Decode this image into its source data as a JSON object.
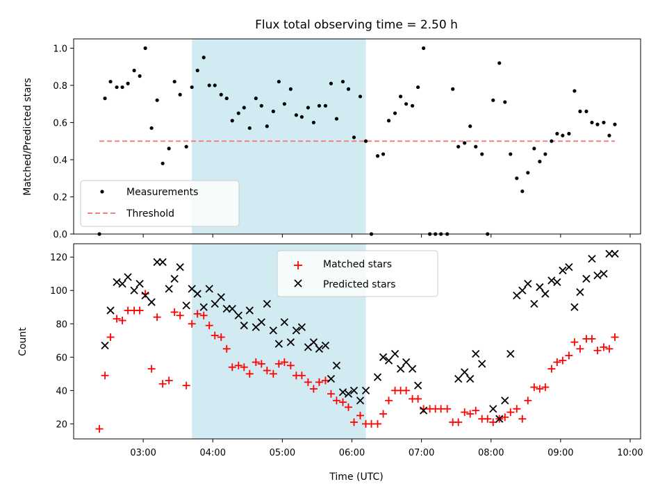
{
  "chart_data": [
    {
      "type": "scatter",
      "title": "Flux total observing time = 2.50 h",
      "ylabel": "Matched/Predicted stars",
      "xlabel": "",
      "x_unit": "hours UTC",
      "xlim": [
        2.0,
        10.15
      ],
      "ylim": [
        0.0,
        1.05
      ],
      "y_ticks": [
        0.0,
        0.2,
        0.4,
        0.6,
        0.8,
        1.0
      ],
      "y_tick_labels": [
        "0.0",
        "0.2",
        "0.4",
        "0.6",
        "0.8",
        "1.0"
      ],
      "shaded_region": {
        "x_start": 3.7,
        "x_end": 6.2,
        "color": "#add8e6"
      },
      "threshold": {
        "value": 0.5,
        "x_start": 2.37,
        "x_end": 9.78,
        "color": "#f08080"
      },
      "legend": {
        "placement": "lower-left",
        "entries": [
          {
            "label": "Measurements",
            "marker": "dot",
            "color": "#000000"
          },
          {
            "label": "Threshold",
            "marker": "dashed-line",
            "color": "#f08080"
          }
        ]
      },
      "series": [
        {
          "name": "Measurements",
          "color": "#000000",
          "x": [
            2.37,
            2.45,
            2.53,
            2.62,
            2.7,
            2.78,
            2.87,
            2.95,
            3.03,
            3.12,
            3.2,
            3.28,
            3.37,
            3.45,
            3.53,
            3.62,
            3.7,
            3.78,
            3.87,
            3.95,
            4.03,
            4.12,
            4.2,
            4.28,
            4.37,
            4.45,
            4.53,
            4.62,
            4.7,
            4.78,
            4.87,
            4.95,
            5.03,
            5.12,
            5.2,
            5.28,
            5.37,
            5.45,
            5.53,
            5.62,
            5.7,
            5.78,
            5.87,
            5.95,
            6.03,
            6.12,
            6.2,
            6.28,
            6.37,
            6.45,
            6.53,
            6.62,
            6.7,
            6.78,
            6.87,
            6.95,
            7.03,
            7.12,
            7.2,
            7.28,
            7.37,
            7.45,
            7.53,
            7.62,
            7.7,
            7.78,
            7.87,
            7.95,
            8.03,
            8.12,
            8.2,
            8.28,
            8.37,
            8.45,
            8.53,
            8.62,
            8.7,
            8.78,
            8.87,
            8.95,
            9.03,
            9.12,
            9.2,
            9.28,
            9.37,
            9.45,
            9.53,
            9.62,
            9.7,
            9.78
          ],
          "y": [
            0.0,
            0.73,
            0.82,
            0.79,
            0.79,
            0.81,
            0.88,
            0.85,
            1.0,
            0.57,
            0.72,
            0.38,
            0.46,
            0.82,
            0.75,
            0.47,
            0.79,
            0.88,
            0.95,
            0.8,
            0.8,
            0.75,
            0.73,
            0.61,
            0.65,
            0.68,
            0.57,
            0.73,
            0.69,
            0.58,
            0.66,
            0.82,
            0.7,
            0.78,
            0.64,
            0.63,
            0.68,
            0.6,
            0.69,
            0.69,
            0.81,
            0.62,
            0.82,
            0.78,
            0.52,
            0.74,
            0.5,
            0.0,
            0.42,
            0.43,
            0.61,
            0.65,
            0.74,
            0.7,
            0.69,
            0.79,
            1.0,
            0.0,
            0.0,
            0.0,
            0.0,
            0.78,
            0.47,
            0.49,
            0.58,
            0.47,
            0.43,
            0.0,
            0.72,
            0.92,
            0.71,
            0.43,
            0.3,
            0.23,
            0.33,
            0.46,
            0.39,
            0.43,
            0.5,
            0.54,
            0.53,
            0.54,
            0.77,
            0.66,
            0.66,
            0.6,
            0.59,
            0.6,
            0.53,
            0.59
          ]
        }
      ]
    },
    {
      "type": "scatter",
      "title": "",
      "ylabel": "Count",
      "xlabel": "Time (UTC)",
      "x_unit": "hours UTC",
      "xlim": [
        2.0,
        10.15
      ],
      "ylim": [
        11,
        128
      ],
      "y_ticks": [
        20,
        40,
        60,
        80,
        100,
        120
      ],
      "y_tick_labels": [
        "20",
        "40",
        "60",
        "80",
        "100",
        "120"
      ],
      "x_ticks": [
        3,
        4,
        5,
        6,
        7,
        8,
        9,
        10
      ],
      "x_tick_labels": [
        "03:00",
        "04:00",
        "05:00",
        "06:00",
        "07:00",
        "08:00",
        "09:00",
        "10:00"
      ],
      "shaded_region": {
        "x_start": 3.7,
        "x_end": 6.2,
        "color": "#add8e6"
      },
      "legend": {
        "placement": "upper-center",
        "entries": [
          {
            "label": "Matched stars",
            "marker": "plus",
            "color": "#ff0000"
          },
          {
            "label": "Predicted stars",
            "marker": "x",
            "color": "#000000"
          }
        ]
      },
      "series": [
        {
          "name": "Matched stars",
          "color": "#ff0000",
          "marker": "plus",
          "x": [
            2.37,
            2.45,
            2.53,
            2.62,
            2.7,
            2.78,
            2.87,
            2.95,
            3.03,
            3.12,
            3.2,
            3.28,
            3.37,
            3.45,
            3.53,
            3.62,
            3.7,
            3.78,
            3.87,
            3.95,
            4.03,
            4.12,
            4.2,
            4.28,
            4.37,
            4.45,
            4.53,
            4.62,
            4.7,
            4.78,
            4.87,
            4.95,
            5.03,
            5.12,
            5.2,
            5.28,
            5.37,
            5.45,
            5.53,
            5.62,
            5.7,
            5.78,
            5.87,
            5.95,
            6.03,
            6.12,
            6.2,
            6.28,
            6.37,
            6.45,
            6.53,
            6.62,
            6.7,
            6.78,
            6.87,
            6.95,
            7.03,
            7.12,
            7.2,
            7.28,
            7.37,
            7.45,
            7.53,
            7.62,
            7.7,
            7.78,
            7.87,
            7.95,
            8.03,
            8.12,
            8.2,
            8.28,
            8.37,
            8.45,
            8.53,
            8.62,
            8.7,
            8.78,
            8.87,
            8.95,
            9.03,
            9.12,
            9.2,
            9.28,
            9.37,
            9.45,
            9.53,
            9.62,
            9.7,
            9.78
          ],
          "y": [
            17,
            49,
            72,
            83,
            82,
            88,
            88,
            88,
            98,
            53,
            84,
            44,
            46,
            87,
            85,
            43,
            80,
            86,
            85,
            79,
            73,
            72,
            65,
            54,
            55,
            54,
            50,
            57,
            56,
            52,
            50,
            56,
            57,
            55,
            49,
            49,
            45,
            41,
            45,
            46,
            38,
            34,
            33,
            30,
            21,
            25,
            20,
            20,
            20,
            26,
            34,
            40,
            40,
            40,
            35,
            35,
            29,
            29,
            29,
            29,
            29,
            21,
            21,
            27,
            26,
            28,
            23,
            23,
            21,
            23,
            24,
            27,
            29,
            23,
            34,
            42,
            41,
            42,
            53,
            57,
            58,
            61,
            69,
            65,
            71,
            71,
            64,
            66,
            65,
            72
          ]
        },
        {
          "name": "Predicted stars",
          "color": "#000000",
          "marker": "x",
          "x": [
            2.45,
            2.53,
            2.62,
            2.7,
            2.78,
            2.87,
            2.95,
            3.03,
            3.12,
            3.2,
            3.28,
            3.37,
            3.45,
            3.53,
            3.62,
            3.7,
            3.78,
            3.87,
            3.95,
            4.03,
            4.12,
            4.2,
            4.28,
            4.37,
            4.45,
            4.53,
            4.62,
            4.7,
            4.78,
            4.87,
            4.95,
            5.03,
            5.12,
            5.2,
            5.28,
            5.37,
            5.45,
            5.53,
            5.62,
            5.7,
            5.78,
            5.87,
            5.95,
            6.03,
            6.12,
            6.2,
            6.37,
            6.45,
            6.53,
            6.62,
            6.7,
            6.78,
            6.87,
            6.95,
            7.03,
            7.53,
            7.62,
            7.7,
            7.78,
            7.87,
            8.03,
            8.12,
            8.2,
            8.28,
            8.37,
            8.45,
            8.53,
            8.62,
            8.7,
            8.78,
            8.87,
            8.95,
            9.03,
            9.12,
            9.2,
            9.28,
            9.37,
            9.45,
            9.53,
            9.62,
            9.7,
            9.78
          ],
          "y": [
            67,
            88,
            105,
            104,
            108,
            100,
            104,
            97,
            93,
            117,
            117,
            101,
            107,
            114,
            91,
            101,
            98,
            90,
            101,
            92,
            96,
            89,
            89,
            85,
            79,
            88,
            78,
            81,
            92,
            76,
            68,
            81,
            69,
            76,
            78,
            66,
            69,
            65,
            67,
            47,
            55,
            39,
            38,
            40,
            34,
            40,
            48,
            60,
            58,
            62,
            53,
            57,
            53,
            43,
            28,
            47,
            51,
            47,
            62,
            56,
            29,
            23,
            34,
            62,
            97,
            100,
            104,
            92,
            102,
            98,
            106,
            105,
            112,
            114,
            90,
            99,
            107,
            119,
            109,
            110,
            122,
            122
          ]
        }
      ]
    }
  ]
}
